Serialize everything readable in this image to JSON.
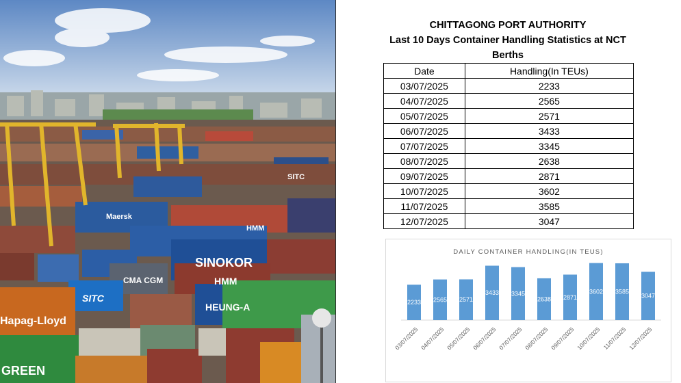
{
  "header": {
    "organization": "CHITTAGONG PORT AUTHORITY",
    "subtitle": "Last 10 Days Container Handling Statistics at NCT Berths"
  },
  "table": {
    "columns": [
      "Date",
      "Handling(In TEUs)"
    ],
    "rows": [
      [
        "03/07/2025",
        "2233"
      ],
      [
        "04/07/2025",
        "2565"
      ],
      [
        "05/07/2025",
        "2571"
      ],
      [
        "06/07/2025",
        "3433"
      ],
      [
        "07/07/2025",
        "3345"
      ],
      [
        "08/07/2025",
        "2638"
      ],
      [
        "09/07/2025",
        "2871"
      ],
      [
        "10/07/2025",
        "3602"
      ],
      [
        "11/07/2025",
        "3585"
      ],
      [
        "12/07/2025",
        "3047"
      ]
    ]
  },
  "photo": {
    "container_texts": [
      "SINOKOR",
      "HMM",
      "SITC",
      "HEUNG-A",
      "CMA CGM",
      "Hapag-Lloyd",
      "GREEN",
      "Maersk",
      "SITC",
      "HMM"
    ]
  },
  "chart_data": {
    "type": "bar",
    "title": "DAILY CONTAINER HANDLING(IN TEUS)",
    "categories": [
      "03/07/2025",
      "04/07/2025",
      "05/07/2025",
      "06/07/2025",
      "07/07/2025",
      "08/07/2025",
      "09/07/2025",
      "10/07/2025",
      "11/07/2025",
      "12/07/2025"
    ],
    "values": [
      2233,
      2565,
      2571,
      3433,
      3345,
      2638,
      2871,
      3602,
      3585,
      3047
    ],
    "ylim": [
      0,
      3800
    ],
    "bar_color": "#5b9bd5",
    "grid": false,
    "legend": "none"
  }
}
